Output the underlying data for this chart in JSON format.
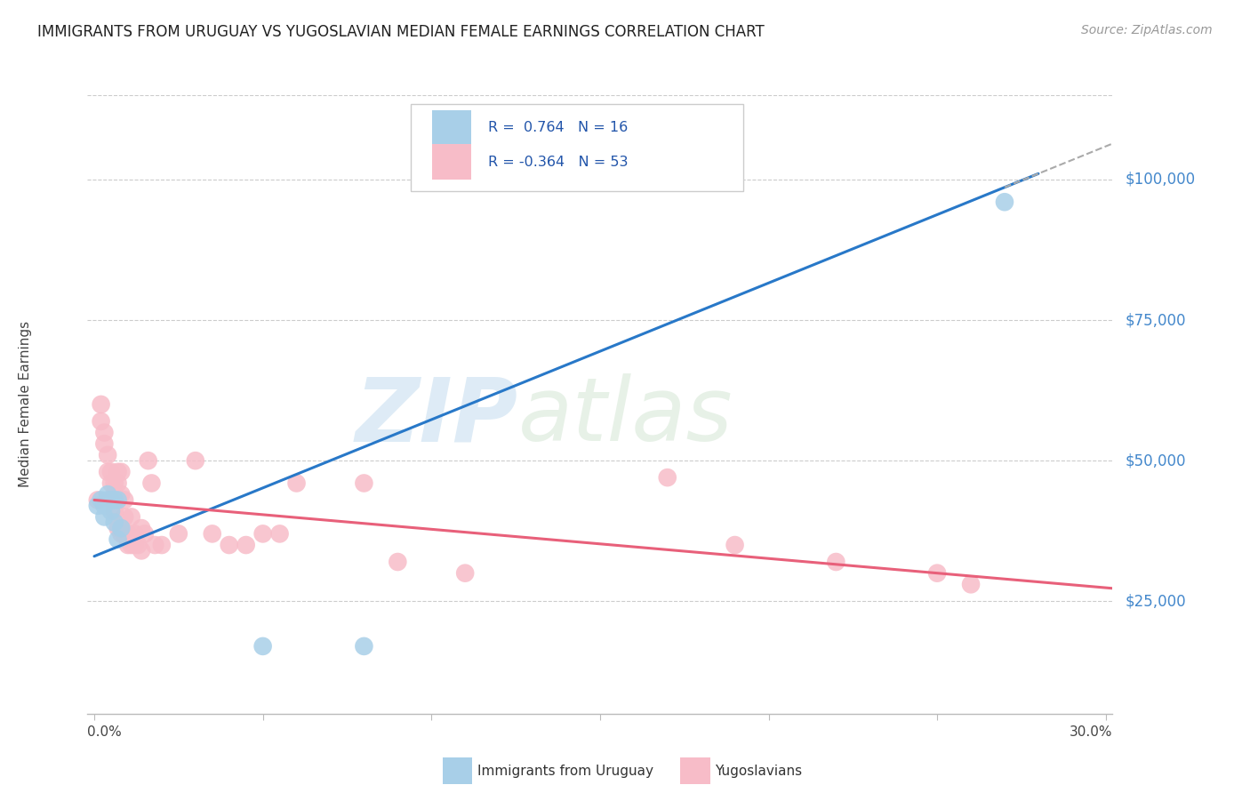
{
  "title": "IMMIGRANTS FROM URUGUAY VS YUGOSLAVIAN MEDIAN FEMALE EARNINGS CORRELATION CHART",
  "source": "Source: ZipAtlas.com",
  "ylabel": "Median Female Earnings",
  "yticks": [
    25000,
    50000,
    75000,
    100000
  ],
  "ytick_labels": [
    "$25,000",
    "$50,000",
    "$75,000",
    "$100,000"
  ],
  "legend_r_blue": "0.764",
  "legend_n_blue": "16",
  "legend_r_pink": "-0.364",
  "legend_n_pink": "53",
  "legend_label_blue": "Immigrants from Uruguay",
  "legend_label_pink": "Yugoslavians",
  "watermark_zip": "ZIP",
  "watermark_atlas": "atlas",
  "blue_color": "#a8cfe8",
  "pink_color": "#f7bcc8",
  "blue_line_color": "#2878c8",
  "pink_line_color": "#e8607a",
  "xlim": [
    -0.002,
    0.302
  ],
  "ylim": [
    5000,
    115000
  ],
  "blue_scatter_x": [
    0.001,
    0.002,
    0.003,
    0.003,
    0.004,
    0.004,
    0.005,
    0.005,
    0.006,
    0.006,
    0.007,
    0.007,
    0.008,
    0.05,
    0.08,
    0.27
  ],
  "blue_scatter_y": [
    42000,
    43000,
    40000,
    42000,
    44000,
    43000,
    41000,
    43000,
    43000,
    39000,
    43000,
    36000,
    38000,
    17000,
    17000,
    96000
  ],
  "pink_scatter_x": [
    0.001,
    0.002,
    0.002,
    0.003,
    0.003,
    0.004,
    0.004,
    0.005,
    0.005,
    0.005,
    0.006,
    0.006,
    0.006,
    0.007,
    0.007,
    0.007,
    0.007,
    0.008,
    0.008,
    0.008,
    0.009,
    0.009,
    0.009,
    0.01,
    0.01,
    0.011,
    0.011,
    0.012,
    0.012,
    0.013,
    0.014,
    0.014,
    0.015,
    0.016,
    0.017,
    0.018,
    0.02,
    0.025,
    0.03,
    0.035,
    0.04,
    0.045,
    0.05,
    0.055,
    0.06,
    0.08,
    0.09,
    0.11,
    0.17,
    0.19,
    0.22,
    0.25,
    0.26
  ],
  "pink_scatter_y": [
    43000,
    60000,
    57000,
    55000,
    53000,
    51000,
    48000,
    48000,
    46000,
    43000,
    46000,
    44000,
    41000,
    48000,
    46000,
    43000,
    38000,
    48000,
    44000,
    37000,
    43000,
    40000,
    37000,
    37000,
    35000,
    40000,
    35000,
    37000,
    35000,
    35000,
    38000,
    34000,
    37000,
    50000,
    46000,
    35000,
    35000,
    37000,
    50000,
    37000,
    35000,
    35000,
    37000,
    37000,
    46000,
    46000,
    32000,
    30000,
    47000,
    35000,
    32000,
    30000,
    28000
  ],
  "blue_line_x0": 0.0,
  "blue_line_x1": 0.302,
  "pink_line_x0": 0.0,
  "pink_line_x1": 0.302
}
